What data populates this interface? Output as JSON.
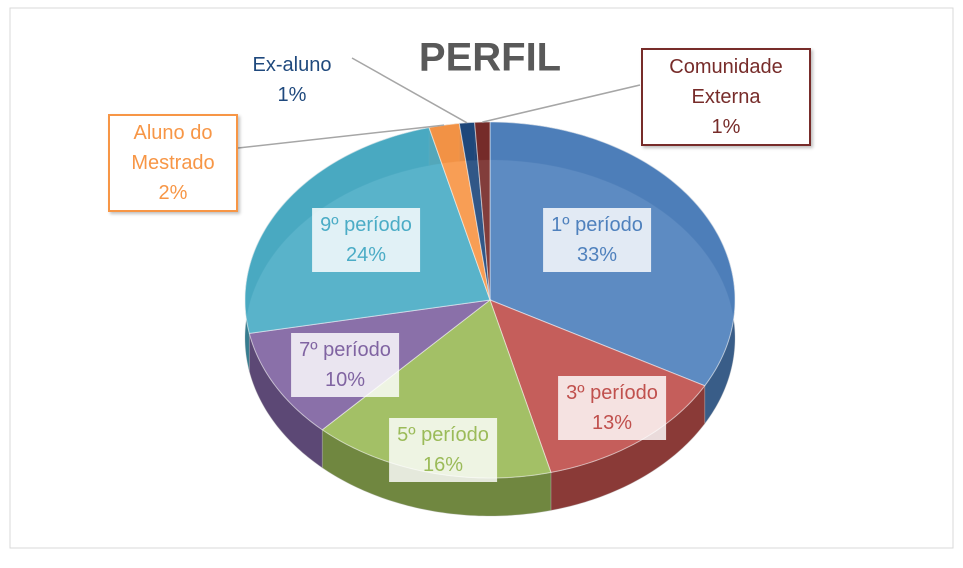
{
  "chart_data": {
    "type": "pie",
    "title": "PERFIL",
    "categories": [
      "1º período",
      "3º período",
      "5º período",
      "7º período",
      "9º período",
      "Aluno do Mestrado",
      "Ex-aluno",
      "Comunidade Externa"
    ],
    "values": [
      33,
      13,
      16,
      10,
      24,
      2,
      1,
      1
    ],
    "value_labels": [
      "33%",
      "13%",
      "16%",
      "10%",
      "24%",
      "2%",
      "1%",
      "1%"
    ],
    "colors": [
      "#4f81bd",
      "#c0504d",
      "#9bbb59",
      "#8064a2",
      "#4bacc6",
      "#f79646",
      "#1f497d",
      "#772c2a"
    ]
  }
}
